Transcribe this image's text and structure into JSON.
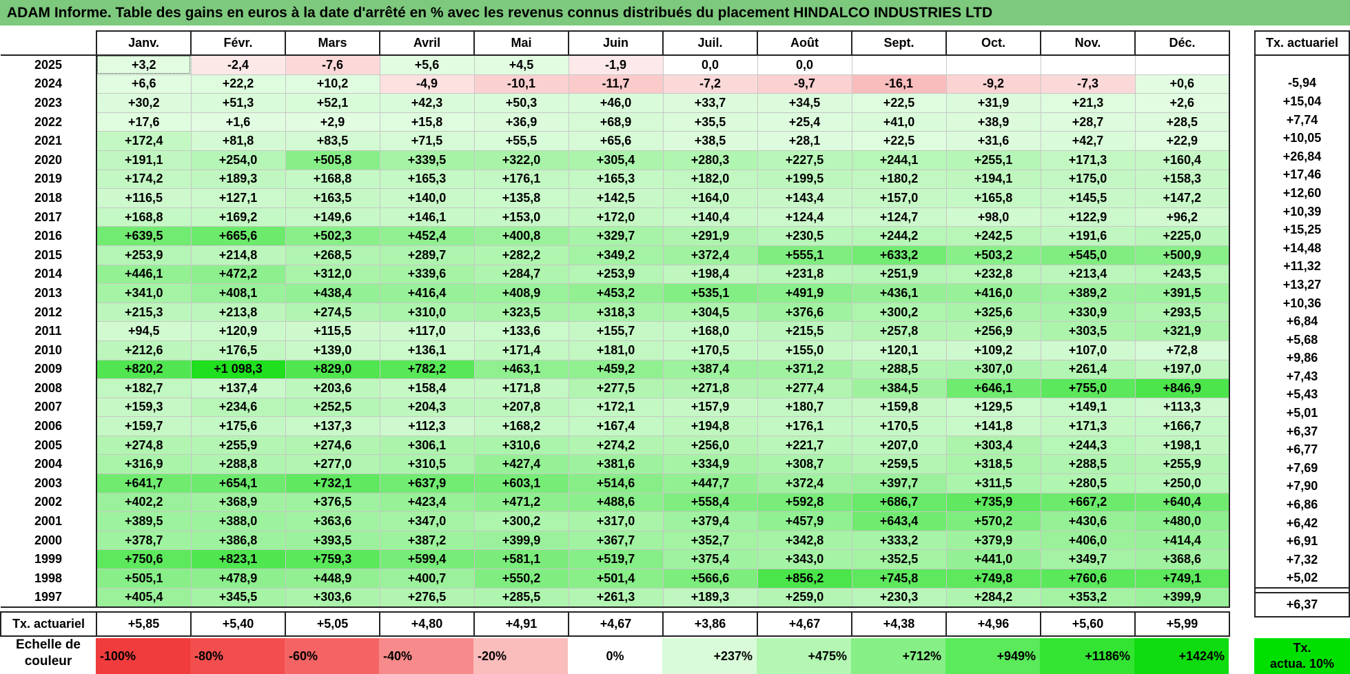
{
  "title": "ADAM Informe. Table des gains en euros à la date d'arrêté en % avec les revenus connus distribués du placement HINDALCO INDUSTRIES LTD",
  "months": [
    "Janv.",
    "Févr.",
    "Mars",
    "Avril",
    "Mai",
    "Juin",
    "Juil.",
    "Août",
    "Sept.",
    "Oct.",
    "Nov.",
    "Déc."
  ],
  "tx_header": "Tx. actuariel",
  "rows": [
    {
      "year": "2025",
      "values": [
        "+3,2",
        "-2,4",
        "-7,6",
        "+5,6",
        "+4,5",
        "-1,9",
        "0,0",
        "0,0",
        "",
        "",
        "",
        ""
      ],
      "tx": ""
    },
    {
      "year": "2024",
      "values": [
        "+6,6",
        "+22,2",
        "+10,2",
        "-4,9",
        "-10,1",
        "-11,7",
        "-7,2",
        "-9,7",
        "-16,1",
        "-9,2",
        "-7,3",
        "+0,6"
      ],
      "tx": "-5,94"
    },
    {
      "year": "2023",
      "values": [
        "+30,2",
        "+51,3",
        "+52,1",
        "+42,3",
        "+50,3",
        "+46,0",
        "+33,7",
        "+34,5",
        "+22,5",
        "+31,9",
        "+21,3",
        "+2,6"
      ],
      "tx": "+15,04"
    },
    {
      "year": "2022",
      "values": [
        "+17,6",
        "+1,6",
        "+2,9",
        "+15,8",
        "+36,9",
        "+68,9",
        "+35,5",
        "+25,4",
        "+41,0",
        "+38,9",
        "+28,7",
        "+28,5"
      ],
      "tx": "+7,74"
    },
    {
      "year": "2021",
      "values": [
        "+172,4",
        "+81,8",
        "+83,5",
        "+71,5",
        "+55,5",
        "+65,6",
        "+38,5",
        "+28,1",
        "+22,5",
        "+31,6",
        "+42,7",
        "+22,9"
      ],
      "tx": "+10,05"
    },
    {
      "year": "2020",
      "values": [
        "+191,1",
        "+254,0",
        "+505,8",
        "+339,5",
        "+322,0",
        "+305,4",
        "+280,3",
        "+227,5",
        "+244,1",
        "+255,1",
        "+171,3",
        "+160,4"
      ],
      "tx": "+26,84"
    },
    {
      "year": "2019",
      "values": [
        "+174,2",
        "+189,3",
        "+168,8",
        "+165,3",
        "+176,1",
        "+165,3",
        "+182,0",
        "+199,5",
        "+180,2",
        "+194,1",
        "+175,0",
        "+158,3"
      ],
      "tx": "+17,46"
    },
    {
      "year": "2018",
      "values": [
        "+116,5",
        "+127,1",
        "+163,5",
        "+140,0",
        "+135,8",
        "+142,5",
        "+164,0",
        "+143,4",
        "+157,0",
        "+165,8",
        "+145,5",
        "+147,2"
      ],
      "tx": "+12,60"
    },
    {
      "year": "2017",
      "values": [
        "+168,8",
        "+169,2",
        "+149,6",
        "+146,1",
        "+153,0",
        "+172,0",
        "+140,4",
        "+124,4",
        "+124,7",
        "+98,0",
        "+122,9",
        "+96,2"
      ],
      "tx": "+10,39"
    },
    {
      "year": "2016",
      "values": [
        "+639,5",
        "+665,6",
        "+502,3",
        "+452,4",
        "+400,8",
        "+329,7",
        "+291,9",
        "+230,5",
        "+244,2",
        "+242,5",
        "+191,6",
        "+225,0"
      ],
      "tx": "+15,25"
    },
    {
      "year": "2015",
      "values": [
        "+253,9",
        "+214,8",
        "+268,5",
        "+289,7",
        "+282,2",
        "+349,2",
        "+372,4",
        "+555,1",
        "+633,2",
        "+503,2",
        "+545,0",
        "+500,9"
      ],
      "tx": "+14,48"
    },
    {
      "year": "2014",
      "values": [
        "+446,1",
        "+472,2",
        "+312,0",
        "+339,6",
        "+284,7",
        "+253,9",
        "+198,4",
        "+231,8",
        "+251,9",
        "+232,8",
        "+213,4",
        "+243,5"
      ],
      "tx": "+11,32"
    },
    {
      "year": "2013",
      "values": [
        "+341,0",
        "+408,1",
        "+438,4",
        "+416,4",
        "+408,9",
        "+453,2",
        "+535,1",
        "+491,9",
        "+436,1",
        "+416,0",
        "+389,2",
        "+391,5"
      ],
      "tx": "+13,27"
    },
    {
      "year": "2012",
      "values": [
        "+215,3",
        "+213,8",
        "+274,5",
        "+310,0",
        "+323,5",
        "+318,3",
        "+304,5",
        "+376,6",
        "+300,2",
        "+325,6",
        "+330,9",
        "+293,5"
      ],
      "tx": "+10,36"
    },
    {
      "year": "2011",
      "values": [
        "+94,5",
        "+120,9",
        "+115,5",
        "+117,0",
        "+133,6",
        "+155,7",
        "+168,0",
        "+215,5",
        "+257,8",
        "+256,9",
        "+303,5",
        "+321,9"
      ],
      "tx": "+6,84"
    },
    {
      "year": "2010",
      "values": [
        "+212,6",
        "+176,5",
        "+139,0",
        "+136,1",
        "+171,4",
        "+181,0",
        "+170,5",
        "+155,0",
        "+120,1",
        "+109,2",
        "+107,0",
        "+72,8"
      ],
      "tx": "+5,68"
    },
    {
      "year": "2009",
      "values": [
        "+820,2",
        "+1 098,3",
        "+829,0",
        "+782,2",
        "+463,1",
        "+459,2",
        "+387,4",
        "+371,2",
        "+288,5",
        "+307,0",
        "+261,4",
        "+197,0"
      ],
      "tx": "+9,86"
    },
    {
      "year": "2008",
      "values": [
        "+182,7",
        "+137,4",
        "+203,6",
        "+158,4",
        "+171,8",
        "+277,5",
        "+271,8",
        "+277,4",
        "+384,5",
        "+646,1",
        "+755,0",
        "+846,9"
      ],
      "tx": "+7,43"
    },
    {
      "year": "2007",
      "values": [
        "+159,3",
        "+234,6",
        "+252,5",
        "+204,3",
        "+207,8",
        "+172,1",
        "+157,9",
        "+180,7",
        "+159,8",
        "+129,5",
        "+149,1",
        "+113,3"
      ],
      "tx": "+5,43"
    },
    {
      "year": "2006",
      "values": [
        "+159,7",
        "+175,6",
        "+137,3",
        "+112,3",
        "+168,2",
        "+167,4",
        "+194,8",
        "+176,1",
        "+170,5",
        "+141,8",
        "+171,3",
        "+166,7"
      ],
      "tx": "+5,01"
    },
    {
      "year": "2005",
      "values": [
        "+274,8",
        "+255,9",
        "+274,6",
        "+306,1",
        "+310,6",
        "+274,2",
        "+256,0",
        "+221,7",
        "+207,0",
        "+303,4",
        "+244,3",
        "+198,1"
      ],
      "tx": "+6,37"
    },
    {
      "year": "2004",
      "values": [
        "+316,9",
        "+288,8",
        "+277,0",
        "+310,5",
        "+427,4",
        "+381,6",
        "+334,9",
        "+308,7",
        "+259,5",
        "+318,5",
        "+288,5",
        "+255,9"
      ],
      "tx": "+6,77"
    },
    {
      "year": "2003",
      "values": [
        "+641,7",
        "+654,1",
        "+732,1",
        "+637,9",
        "+603,1",
        "+514,6",
        "+447,7",
        "+372,4",
        "+397,7",
        "+311,5",
        "+280,5",
        "+250,0"
      ],
      "tx": "+7,69"
    },
    {
      "year": "2002",
      "values": [
        "+402,2",
        "+368,9",
        "+376,5",
        "+423,4",
        "+471,2",
        "+488,6",
        "+558,4",
        "+592,8",
        "+686,7",
        "+735,9",
        "+667,2",
        "+640,4"
      ],
      "tx": "+7,90"
    },
    {
      "year": "2001",
      "values": [
        "+389,5",
        "+388,0",
        "+363,6",
        "+347,0",
        "+300,2",
        "+317,0",
        "+379,4",
        "+457,9",
        "+643,4",
        "+570,2",
        "+430,6",
        "+480,0"
      ],
      "tx": "+6,86"
    },
    {
      "year": "2000",
      "values": [
        "+378,7",
        "+386,8",
        "+393,5",
        "+387,2",
        "+399,9",
        "+367,7",
        "+352,7",
        "+342,8",
        "+333,2",
        "+379,9",
        "+406,0",
        "+414,4"
      ],
      "tx": "+6,42"
    },
    {
      "year": "1999",
      "values": [
        "+750,6",
        "+823,1",
        "+759,3",
        "+599,4",
        "+581,1",
        "+519,7",
        "+375,4",
        "+343,0",
        "+352,5",
        "+441,0",
        "+349,7",
        "+368,6"
      ],
      "tx": "+6,91"
    },
    {
      "year": "1998",
      "values": [
        "+505,1",
        "+478,9",
        "+448,9",
        "+400,7",
        "+550,2",
        "+501,4",
        "+566,6",
        "+856,2",
        "+745,8",
        "+749,8",
        "+760,6",
        "+749,1"
      ],
      "tx": "+7,32"
    },
    {
      "year": "1997",
      "values": [
        "+405,4",
        "+345,5",
        "+303,6",
        "+276,5",
        "+285,5",
        "+261,3",
        "+189,3",
        "+259,0",
        "+230,3",
        "+284,2",
        "+353,2",
        "+399,9"
      ],
      "tx": "+5,02"
    }
  ],
  "footer": {
    "label": "Tx. actuariel",
    "values": [
      "+5,85",
      "+5,40",
      "+5,05",
      "+4,80",
      "+4,91",
      "+4,67",
      "+3,86",
      "+4,67",
      "+4,38",
      "+4,96",
      "+5,60",
      "+5,99"
    ],
    "tx": "+6,37"
  },
  "legend": {
    "label_line1": "Echelle de",
    "label_line2": "couleur",
    "steps": [
      {
        "label": "-100%",
        "color": "#f03c3c",
        "kind": "neg"
      },
      {
        "label": "-80%",
        "color": "#f24e4e",
        "kind": "neg"
      },
      {
        "label": "-60%",
        "color": "#f46464",
        "kind": "neg"
      },
      {
        "label": "-40%",
        "color": "#f78a8a",
        "kind": "neg"
      },
      {
        "label": "-20%",
        "color": "#fbbcbc",
        "kind": "neg"
      },
      {
        "label": "0%",
        "color": "#ffffff",
        "kind": "zero"
      },
      {
        "label": "+237%",
        "color": "#d9fbd9",
        "kind": "pos"
      },
      {
        "label": "+475%",
        "color": "#b3f7b3",
        "kind": "pos"
      },
      {
        "label": "+712%",
        "color": "#86f086",
        "kind": "pos"
      },
      {
        "label": "+949%",
        "color": "#5aea5a",
        "kind": "pos"
      },
      {
        "label": "+1186%",
        "color": "#33e433",
        "kind": "pos"
      },
      {
        "label": "+1424%",
        "color": "#0fdc0f",
        "kind": "pos"
      }
    ],
    "tx_line1": "Tx.",
    "tx_line2": "actua. 10%",
    "tx_color": "#00e000"
  },
  "colors": {
    "title_bg": "#7dc97d",
    "negative_max": "#f03c3c",
    "positive_max": "#0fdc0f"
  }
}
